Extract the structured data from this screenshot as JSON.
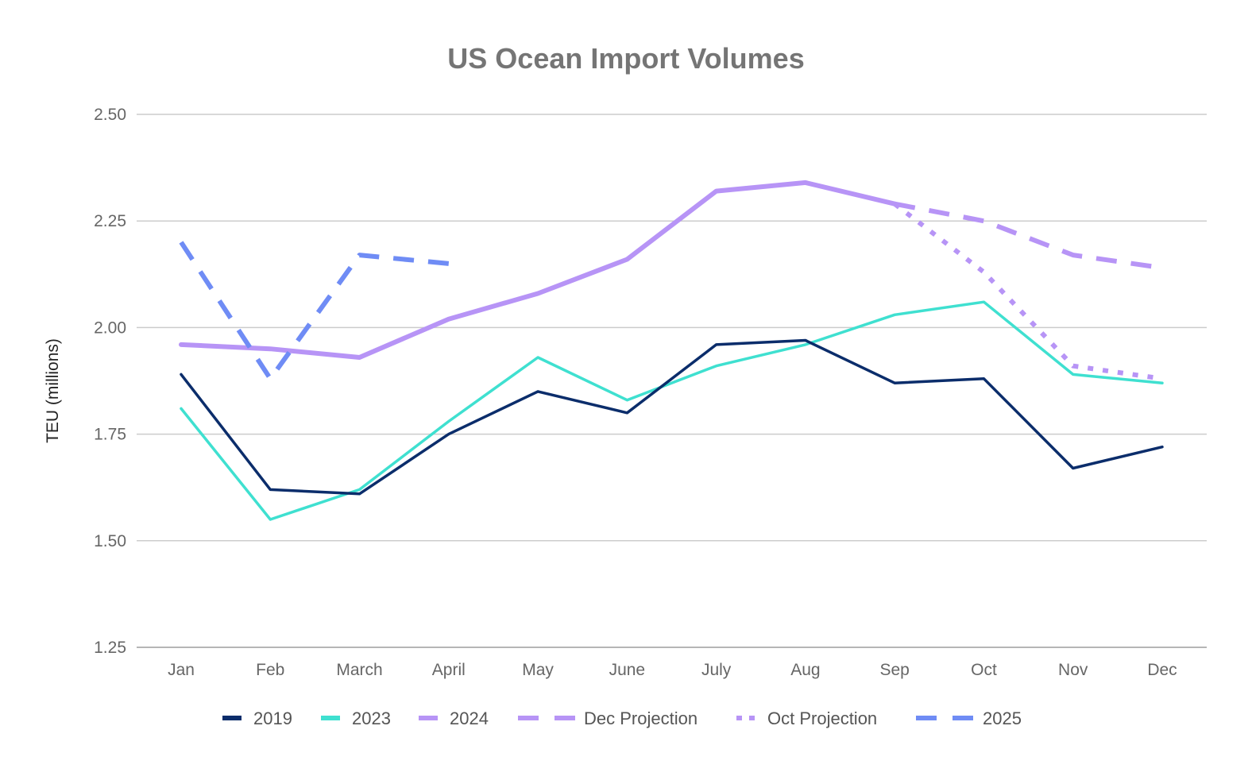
{
  "chart_data": {
    "type": "line",
    "title": "US Ocean Import Volumes",
    "xlabel": "",
    "ylabel": "TEU (millions)",
    "categories": [
      "Jan",
      "Feb",
      "March",
      "April",
      "May",
      "June",
      "July",
      "Aug",
      "Sep",
      "Oct",
      "Nov",
      "Dec"
    ],
    "ylim": [
      1.25,
      2.5
    ],
    "yticks": [
      "1.25",
      "1.50",
      "1.75",
      "2.00",
      "2.25",
      "2.50"
    ],
    "grid": true,
    "legend_position": "bottom",
    "series": [
      {
        "name": "2019",
        "color": "#0b2d6b",
        "dash": "solid",
        "weight": "thin",
        "values": [
          1.89,
          1.62,
          1.61,
          1.75,
          1.85,
          1.8,
          1.96,
          1.97,
          1.87,
          1.88,
          1.67,
          1.72
        ]
      },
      {
        "name": "2023",
        "color": "#3fe0d0",
        "dash": "solid",
        "weight": "thin",
        "values": [
          1.81,
          1.55,
          1.62,
          1.78,
          1.93,
          1.83,
          1.91,
          1.96,
          2.03,
          2.06,
          1.89,
          1.87
        ]
      },
      {
        "name": "2024",
        "color": "#b794f6",
        "dash": "solid",
        "weight": "thick",
        "values": [
          1.96,
          1.95,
          1.93,
          2.02,
          2.08,
          2.16,
          2.32,
          2.34,
          2.29,
          null,
          null,
          null
        ]
      },
      {
        "name": "Dec Projection",
        "color": "#b794f6",
        "dash": "dashed",
        "weight": "thick",
        "values": [
          null,
          null,
          null,
          null,
          null,
          null,
          null,
          null,
          2.29,
          2.25,
          2.17,
          2.14
        ]
      },
      {
        "name": "Oct Projection",
        "color": "#b794f6",
        "dash": "dotted",
        "weight": "thick",
        "values": [
          null,
          null,
          null,
          null,
          null,
          null,
          null,
          null,
          2.29,
          2.13,
          1.91,
          1.88
        ]
      },
      {
        "name": "2025",
        "color": "#6f8cf5",
        "dash": "dashed",
        "weight": "thick",
        "values": [
          2.2,
          1.88,
          2.17,
          2.15,
          null,
          null,
          null,
          null,
          null,
          null,
          null,
          null
        ]
      }
    ]
  }
}
